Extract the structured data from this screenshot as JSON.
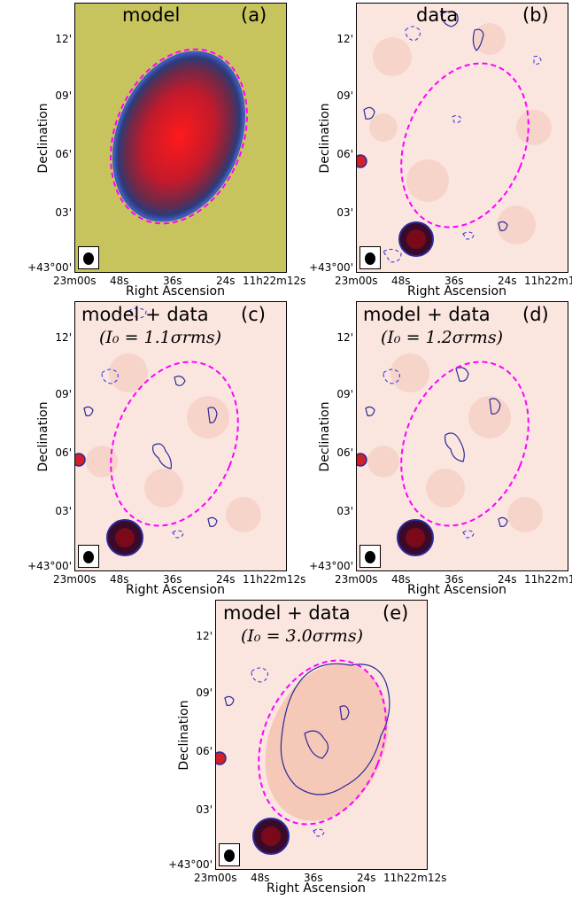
{
  "panels": [
    {
      "title": "model",
      "letter": "(a)",
      "formula": ""
    },
    {
      "title": "data",
      "letter": "(b)",
      "formula": ""
    },
    {
      "title": "model + data",
      "letter": "(c)",
      "formula": "(I₀ = 1.1σrms)"
    },
    {
      "title": "model + data",
      "letter": "(d)",
      "formula": "(I₀ = 1.2σrms)"
    },
    {
      "title": "model + data",
      "letter": "(e)",
      "formula": "(I₀ = 3.0σrms)"
    }
  ],
  "axes": {
    "y_label": "Declination",
    "x_label": "Right Ascension",
    "y_ticks": [
      "12'",
      "09'",
      "06'",
      "03'",
      "+43°00'"
    ],
    "x_ticks": [
      "23m00s",
      "48s",
      "36s",
      "24s",
      "11h22m12s"
    ]
  },
  "colors": {
    "model_background": "#c7c45e",
    "source_red": "#e8101a",
    "contour_positive": "#2a2a9a",
    "contour_negative": "#3a3ae0",
    "ellipse": "#ff00ff",
    "noise_background": "#fbe6df"
  }
}
